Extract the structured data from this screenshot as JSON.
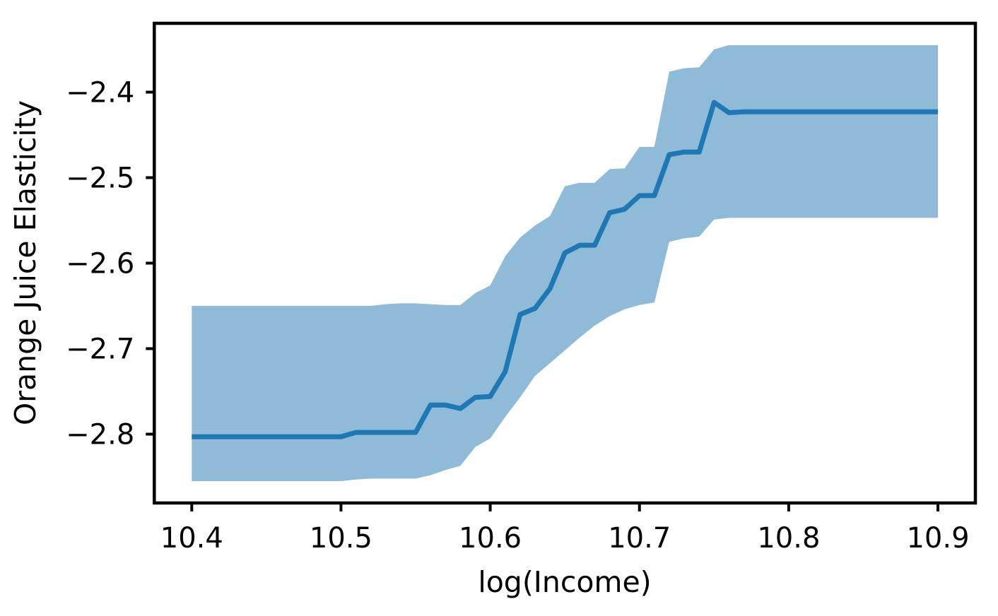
{
  "figure": {
    "background": "#ffffff",
    "spine_color": "#000000"
  },
  "chart_data": {
    "type": "line",
    "title": "",
    "xlabel": "log(Income)",
    "ylabel": "Orange Juice Elasticity",
    "grid": false,
    "legend": null,
    "xlim": [
      10.3749,
      10.9251
    ],
    "ylim": [
      -2.8805,
      -2.3195
    ],
    "xticks": [
      10.4,
      10.5,
      10.6,
      10.7,
      10.8,
      10.9
    ],
    "xtick_labels": [
      "10.4",
      "10.5",
      "10.6",
      "10.7",
      "10.8",
      "10.9"
    ],
    "yticks": [
      -2.4,
      -2.5,
      -2.6,
      -2.7,
      -2.8
    ],
    "ytick_labels": [
      "−2.4",
      "−2.5",
      "−2.6",
      "−2.7",
      "−2.8"
    ],
    "line_color": "#1f77b4",
    "band_color": "#1f77b4",
    "band_opacity": 0.5,
    "x": [
      10.4,
      10.41,
      10.42,
      10.43,
      10.44,
      10.45,
      10.46,
      10.47,
      10.48,
      10.49,
      10.5,
      10.51,
      10.52,
      10.53,
      10.54,
      10.55,
      10.56,
      10.57,
      10.58,
      10.59,
      10.6,
      10.61,
      10.62,
      10.63,
      10.64,
      10.65,
      10.66,
      10.67,
      10.68,
      10.69,
      10.7,
      10.71,
      10.72,
      10.73,
      10.74,
      10.75,
      10.76,
      10.77,
      10.78,
      10.79,
      10.8,
      10.81,
      10.82,
      10.83,
      10.84,
      10.85,
      10.86,
      10.87,
      10.88,
      10.89,
      10.9
    ],
    "series": [
      {
        "name": "Orange juice elasticity estimate",
        "role": "line",
        "values": [
          -2.803,
          -2.803,
          -2.803,
          -2.803,
          -2.803,
          -2.803,
          -2.803,
          -2.803,
          -2.803,
          -2.803,
          -2.803,
          -2.798,
          -2.798,
          -2.798,
          -2.798,
          -2.798,
          -2.766,
          -2.766,
          -2.77,
          -2.757,
          -2.756,
          -2.727,
          -2.66,
          -2.653,
          -2.63,
          -2.588,
          -2.579,
          -2.579,
          -2.541,
          -2.537,
          -2.521,
          -2.521,
          -2.473,
          -2.47,
          -2.47,
          -2.412,
          -2.424,
          -2.423,
          -2.423,
          -2.423,
          -2.423,
          -2.423,
          -2.423,
          -2.423,
          -2.423,
          -2.423,
          -2.423,
          -2.423,
          -2.423,
          -2.423,
          -2.423
        ]
      },
      {
        "name": "Confidence band upper",
        "role": "band-upper",
        "values": [
          -2.65,
          -2.65,
          -2.65,
          -2.65,
          -2.65,
          -2.65,
          -2.65,
          -2.65,
          -2.65,
          -2.65,
          -2.65,
          -2.65,
          -2.65,
          -2.648,
          -2.647,
          -2.647,
          -2.648,
          -2.649,
          -2.649,
          -2.635,
          -2.626,
          -2.592,
          -2.57,
          -2.556,
          -2.545,
          -2.51,
          -2.506,
          -2.506,
          -2.49,
          -2.489,
          -2.464,
          -2.464,
          -2.376,
          -2.372,
          -2.371,
          -2.35,
          -2.345,
          -2.345,
          -2.345,
          -2.345,
          -2.345,
          -2.345,
          -2.345,
          -2.345,
          -2.345,
          -2.345,
          -2.345,
          -2.345,
          -2.345,
          -2.345,
          -2.345
        ]
      },
      {
        "name": "Confidence band lower",
        "role": "band-lower",
        "values": [
          -2.855,
          -2.855,
          -2.855,
          -2.855,
          -2.855,
          -2.855,
          -2.855,
          -2.855,
          -2.855,
          -2.855,
          -2.855,
          -2.853,
          -2.852,
          -2.852,
          -2.852,
          -2.852,
          -2.848,
          -2.842,
          -2.837,
          -2.815,
          -2.805,
          -2.78,
          -2.757,
          -2.732,
          -2.717,
          -2.702,
          -2.687,
          -2.673,
          -2.662,
          -2.654,
          -2.649,
          -2.646,
          -2.575,
          -2.571,
          -2.569,
          -2.549,
          -2.547,
          -2.547,
          -2.547,
          -2.547,
          -2.547,
          -2.547,
          -2.547,
          -2.547,
          -2.547,
          -2.547,
          -2.547,
          -2.547,
          -2.547,
          -2.547,
          -2.547
        ]
      }
    ]
  }
}
